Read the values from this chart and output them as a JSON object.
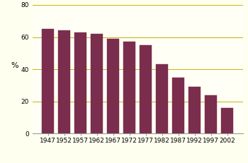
{
  "categories": [
    "1947",
    "1952",
    "1957",
    "1962",
    "1967",
    "1972",
    "1977",
    "1982",
    "1987",
    "1992",
    "1997",
    "2002"
  ],
  "values": [
    65,
    64,
    63,
    62,
    59,
    57,
    55,
    43,
    35,
    29,
    24,
    16
  ],
  "bar_color": "#7B2D4E",
  "bar_edge_color": "#7B2D4E",
  "background_color": "#FFFFF0",
  "plot_bg_color": "#FFFFF5",
  "ylabel": "%",
  "ylim": [
    0,
    80
  ],
  "yticks": [
    0,
    20,
    40,
    60,
    80
  ],
  "grid_color": "#C8B400",
  "grid_linewidth": 0.7,
  "tick_fontsize": 6.5,
  "ylabel_fontsize": 8,
  "bar_width": 0.75
}
